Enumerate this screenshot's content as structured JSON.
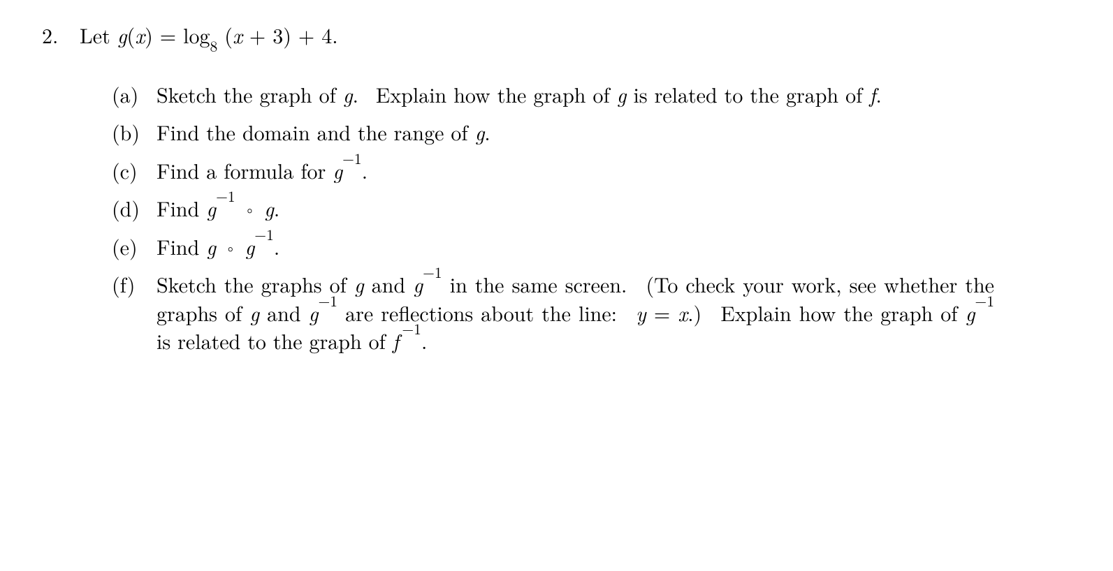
{
  "typography": {
    "font_family": "Computer Modern / Latin Modern (serif)",
    "font_size_pt": 22,
    "text_color": "#000000",
    "background_color": "#ffffff",
    "justify_subitems": true
  },
  "problem": {
    "number": "2.",
    "stem_prefix": "Let ",
    "stem_math_html": "<span class='mi'>g</span>(<span class='mi'>x</span>) = log<sub>8</sub> (<span class='mi'>x</span> + 3) + 4.",
    "parts": [
      {
        "label": "(a)",
        "html": "Sketch the graph of <span class='mi'>g</span>.&nbsp; Explain how the graph of <span class='mi'>g</span> is related to the graph of <span class='mi'>f</span>."
      },
      {
        "label": "(b)",
        "html": "Find the domain and the range of <span class='mi'>g</span>."
      },
      {
        "label": "(c)",
        "html": "Find a formula for <span class='mi'>g</span><sup>&minus;1</sup>."
      },
      {
        "label": "(d)",
        "html": "Find <span class='mi'>g</span><sup>&minus;1</sup> <span class='compose'>&#9702;</span> <span class='mi'>g</span>."
      },
      {
        "label": "(e)",
        "html": "Find <span class='mi'>g</span> <span class='compose'>&#9702;</span> <span class='mi'>g</span><sup>&minus;1</sup>."
      },
      {
        "label": "(f)",
        "html": "Sketch the graphs of <span class='mi'>g</span> and <span class='mi'>g</span><sup>&minus;1</sup> in the same screen.&nbsp; (To check your work, see whether the graphs of <span class='mi'>g</span> and <span class='mi'>g</span><sup>&minus;1</sup> are reflections about the line:&nbsp; <span class='mi'>y</span> = <span class='mi'>x</span>.)&nbsp; Explain how the graph of <span class='mi'>g</span><sup>&minus;1</sup> is related to the graph of <span class='mi'>f</span><sup>&thinsp;&minus;1</sup>."
      }
    ]
  }
}
